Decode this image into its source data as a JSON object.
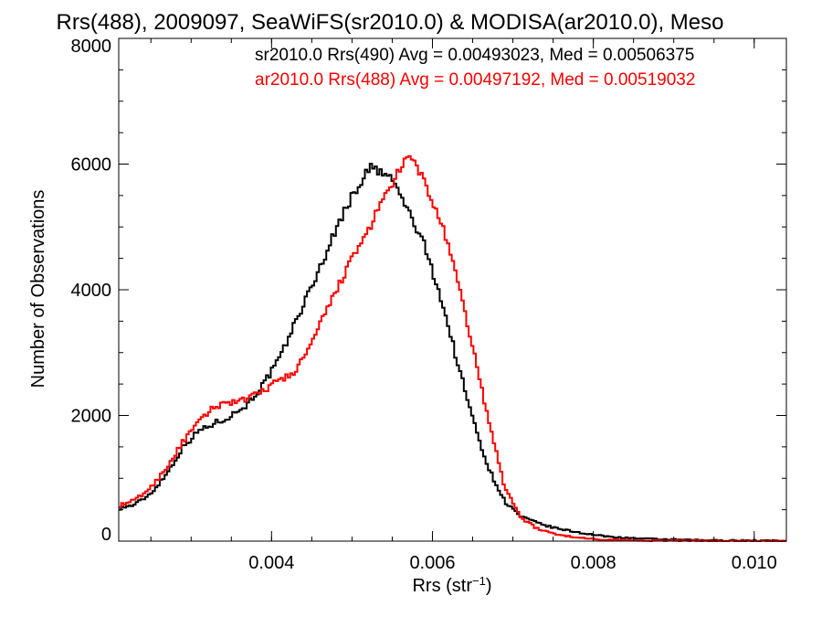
{
  "chart_data": {
    "type": "line",
    "title": "Rrs(488), 2009097, SeaWiFS(sr2010.0) & MODISA(ar2010.0), Meso",
    "xlabel": "Rrs (str",
    "xlabel_sup": "−1",
    "xlabel_close": ")",
    "ylabel": "Number of Observations",
    "xlim": [
      0.0021,
      0.0104
    ],
    "ylim": [
      0,
      8000
    ],
    "x_ticks": [
      {
        "value": 0.004,
        "label": "0.004"
      },
      {
        "value": 0.006,
        "label": "0.006"
      },
      {
        "value": 0.008,
        "label": "0.008"
      },
      {
        "value": 0.01,
        "label": "0.010"
      }
    ],
    "y_ticks": [
      {
        "value": 0,
        "label": "0"
      },
      {
        "value": 2000,
        "label": "2000"
      },
      {
        "value": 4000,
        "label": "4000"
      },
      {
        "value": 6000,
        "label": "6000"
      },
      {
        "value": 8000,
        "label": "8000"
      }
    ],
    "x_minor_step": 0.0005,
    "y_minor_step": 500,
    "grid": false,
    "legend_position": "top-right",
    "bin_width": 3e-05,
    "series": [
      {
        "name": "sr2010.0 Rrs(490) Avg = 0.00493023, Med = 0.00506375",
        "color": "#000000",
        "points": [
          [
            0.0021,
            520
          ],
          [
            0.0023,
            580
          ],
          [
            0.0025,
            760
          ],
          [
            0.0027,
            1080
          ],
          [
            0.0029,
            1500
          ],
          [
            0.0031,
            1760
          ],
          [
            0.0033,
            1880
          ],
          [
            0.0035,
            2000
          ],
          [
            0.0037,
            2180
          ],
          [
            0.0039,
            2500
          ],
          [
            0.0041,
            2900
          ],
          [
            0.0043,
            3500
          ],
          [
            0.0045,
            4050
          ],
          [
            0.0047,
            4650
          ],
          [
            0.0049,
            5250
          ],
          [
            0.0051,
            5700
          ],
          [
            0.0052,
            5900
          ],
          [
            0.00525,
            5950
          ],
          [
            0.0053,
            5900
          ],
          [
            0.0055,
            5760
          ],
          [
            0.0057,
            5250
          ],
          [
            0.0059,
            4700
          ],
          [
            0.0061,
            3900
          ],
          [
            0.0063,
            2900
          ],
          [
            0.0065,
            1950
          ],
          [
            0.0067,
            1150
          ],
          [
            0.0069,
            630
          ],
          [
            0.0071,
            390
          ],
          [
            0.0073,
            290
          ],
          [
            0.0075,
            215
          ],
          [
            0.0077,
            165
          ],
          [
            0.0079,
            120
          ],
          [
            0.0081,
            85
          ],
          [
            0.0083,
            60
          ],
          [
            0.0085,
            45
          ],
          [
            0.0088,
            30
          ],
          [
            0.0091,
            20
          ],
          [
            0.0095,
            12
          ],
          [
            0.01,
            8
          ],
          [
            0.0104,
            5
          ]
        ]
      },
      {
        "name": "ar2010.0 Rrs(488) Avg = 0.00497192, Med = 0.00519032",
        "color": "#ff0000",
        "points": [
          [
            0.0021,
            560
          ],
          [
            0.0023,
            650
          ],
          [
            0.0025,
            850
          ],
          [
            0.0027,
            1180
          ],
          [
            0.0029,
            1580
          ],
          [
            0.0031,
            1900
          ],
          [
            0.0033,
            2150
          ],
          [
            0.0035,
            2220
          ],
          [
            0.0037,
            2250
          ],
          [
            0.0039,
            2400
          ],
          [
            0.0041,
            2560
          ],
          [
            0.0043,
            2700
          ],
          [
            0.0045,
            3150
          ],
          [
            0.0047,
            3700
          ],
          [
            0.0049,
            4250
          ],
          [
            0.0051,
            4700
          ],
          [
            0.0053,
            5200
          ],
          [
            0.0055,
            5700
          ],
          [
            0.0057,
            6100
          ],
          [
            0.0058,
            6000
          ],
          [
            0.0059,
            5700
          ],
          [
            0.0061,
            5100
          ],
          [
            0.0063,
            4200
          ],
          [
            0.0065,
            3100
          ],
          [
            0.0067,
            1900
          ],
          [
            0.0069,
            850
          ],
          [
            0.0071,
            380
          ],
          [
            0.0073,
            200
          ],
          [
            0.0075,
            120
          ],
          [
            0.0077,
            75
          ],
          [
            0.0079,
            45
          ],
          [
            0.0081,
            28
          ],
          [
            0.0084,
            15
          ],
          [
            0.0088,
            8
          ],
          [
            0.0093,
            4
          ],
          [
            0.01,
            2
          ],
          [
            0.0104,
            1
          ]
        ]
      }
    ]
  }
}
